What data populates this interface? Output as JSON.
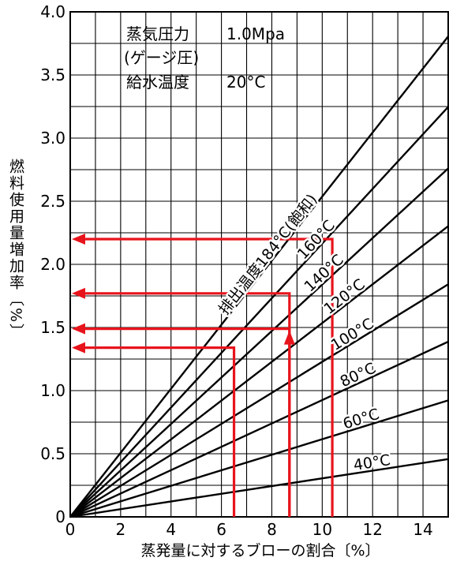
{
  "chart_data": {
    "type": "line",
    "xlabel": "蒸発量に対するブローの割合〔%〕",
    "ylabel": "燃料使用量増加率〔%〕",
    "xlim": [
      0,
      15
    ],
    "ylim": [
      0,
      4.0
    ],
    "x_ticks": [
      "0",
      "2",
      "4",
      "6",
      "8",
      "10",
      "12",
      "14"
    ],
    "y_ticks": [
      "0",
      "0.5",
      "1.0",
      "1.5",
      "2.0",
      "2.5",
      "3.0",
      "3.5",
      "4.0"
    ],
    "grid": true,
    "conditions": [
      {
        "label": "蒸気圧力",
        "value": "1.0Mpa"
      },
      {
        "label": "(ゲージ圧)",
        "value": ""
      },
      {
        "label": "給水温度",
        "value": "20°C"
      }
    ],
    "series": [
      {
        "name": "40°C",
        "slope": 0.0305
      },
      {
        "name": "60°C",
        "slope": 0.0615
      },
      {
        "name": "80°C",
        "slope": 0.0925
      },
      {
        "name": "100°C",
        "slope": 0.1228
      },
      {
        "name": "120°C",
        "slope": 0.1535
      },
      {
        "name": "140°C",
        "slope": 0.184
      },
      {
        "name": "160°C",
        "slope": 0.2165
      },
      {
        "name": "排出温度184°C(飽和)",
        "slope": 0.2537
      }
    ],
    "annotations": [
      {
        "x": 10.4,
        "y": 2.2,
        "direction": "up-then-left"
      },
      {
        "x": 8.7,
        "y": 1.77,
        "direction": "up-then-left"
      },
      {
        "x": 8.7,
        "y": 1.49,
        "direction": "up-then-left"
      },
      {
        "x": 6.5,
        "y": 1.34,
        "direction": "up-then-left"
      }
    ],
    "accent_color": "#e8141c"
  }
}
